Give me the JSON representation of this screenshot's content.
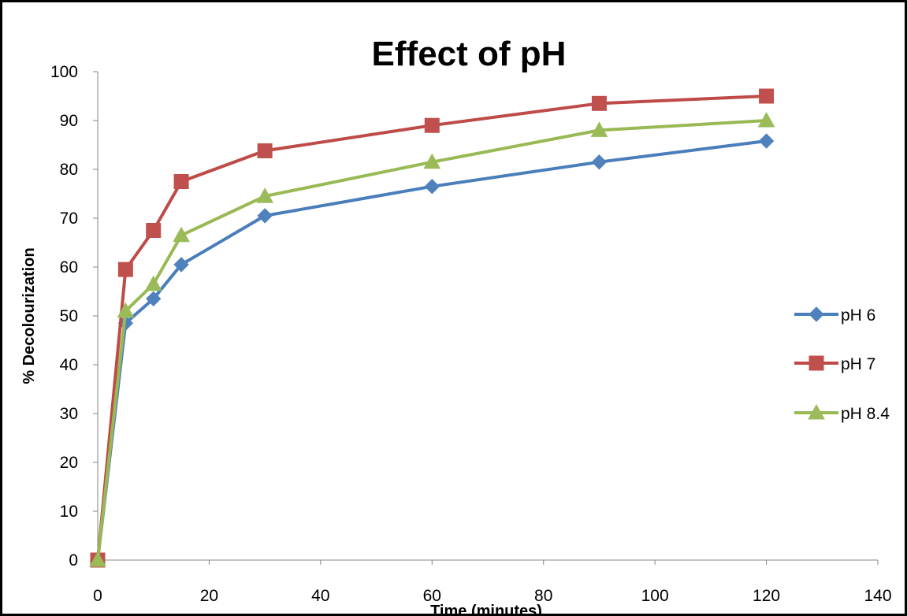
{
  "chart_data": {
    "type": "line",
    "title": "Effect of pH",
    "xlabel": "Time (minutes)",
    "ylabel": "% Decolourization",
    "xlim": [
      0,
      140
    ],
    "ylim": [
      0,
      100
    ],
    "x_ticks": [
      0,
      20,
      40,
      60,
      80,
      100,
      120,
      140
    ],
    "y_ticks": [
      0,
      10,
      20,
      30,
      40,
      50,
      60,
      70,
      80,
      90,
      100
    ],
    "grid": false,
    "legend_position": "right",
    "x": [
      0,
      5,
      10,
      15,
      30,
      60,
      90,
      120
    ],
    "series": [
      {
        "name": "pH 6",
        "marker": "diamond",
        "color": "#4A7EBB",
        "marker_color": "#4F81BD",
        "values": [
          0,
          48.5,
          53.5,
          60.5,
          70.5,
          76.5,
          81.5,
          85.8
        ]
      },
      {
        "name": "pH 7",
        "marker": "square",
        "color": "#BE4B48",
        "marker_color": "#C0504D",
        "values": [
          0,
          59.5,
          67.5,
          77.5,
          83.8,
          89,
          93.5,
          95
        ]
      },
      {
        "name": "pH 8.4",
        "marker": "triangle",
        "color": "#98B954",
        "marker_color": "#9BBB59",
        "values": [
          0,
          51,
          56.5,
          66.5,
          74.5,
          81.5,
          88,
          90
        ]
      }
    ]
  }
}
